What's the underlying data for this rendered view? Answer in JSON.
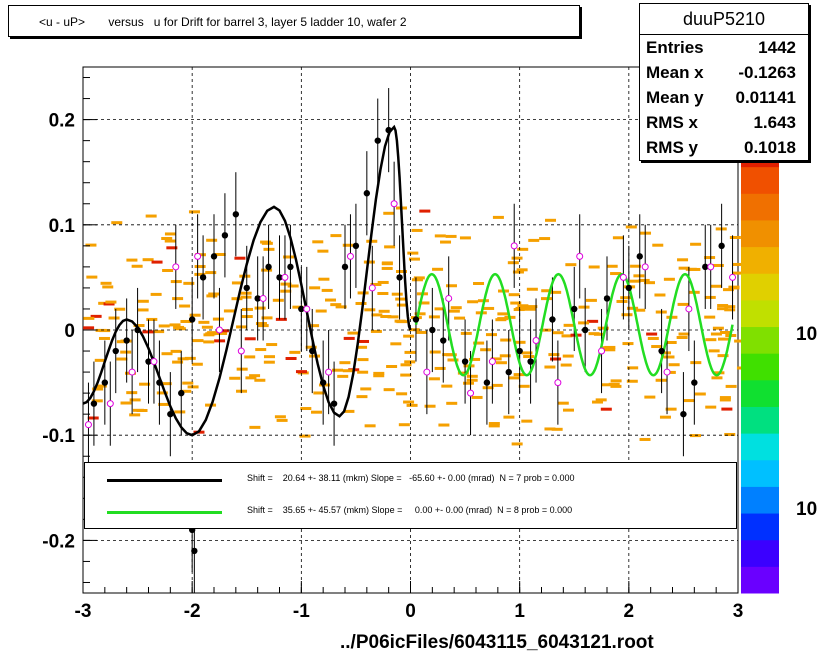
{
  "title": "<u - uP>       versus   u for Drift for barrel 3, layer 5 ladder 10, wafer 2",
  "xlabel": "../P06icFiles/6043115_6043121.root",
  "stats": {
    "name": "duuP5210",
    "rows": [
      {
        "label": "Entries",
        "value": "1442"
      },
      {
        "label": "Mean x",
        "value": "-0.1263"
      },
      {
        "label": "Mean y",
        "value": "0.01141"
      },
      {
        "label": "RMS x",
        "value": "1.643"
      },
      {
        "label": "RMS y",
        "value": "0.1018"
      }
    ]
  },
  "legend": {
    "fit1": "Shift =    20.64 +- 38.11 (mkm) Slope =   -65.60 +- 0.00 (mrad)  N = 7 prob = 0.000",
    "fit2": "Shift =    35.65 +- 45.57 (mkm) Slope =     0.00 +- 0.00 (mrad)  N = 8 prob = 0.000"
  },
  "colorbar_labels": [
    "10",
    "10"
  ],
  "colors": {
    "fit1": "#000000",
    "fit2": "#22dd22",
    "open_marker": "#dd00dd",
    "cells": "#f5a000"
  },
  "chart_data": {
    "type": "scatter",
    "xlim": [
      -3,
      3
    ],
    "ylim": [
      -0.25,
      0.25
    ],
    "x_ticks": [
      -3,
      -2,
      -1,
      0,
      1,
      2,
      3
    ],
    "x_tick_labels": [
      "-3",
      "-2",
      "-1",
      "0",
      "1",
      "2",
      "3"
    ],
    "y_ticks": [
      -0.2,
      -0.1,
      0,
      0.1,
      0.2
    ],
    "y_tick_labels": [
      "-0.2",
      "-0.1",
      "0",
      "0.1",
      "0.2"
    ],
    "grid": true,
    "series": [
      {
        "marker": "filled-circle",
        "x": [
          -2.9,
          -2.8,
          -2.7,
          -2.6,
          -2.5,
          -2.4,
          -2.3,
          -2.2,
          -2.1,
          -2.0,
          -1.9,
          -1.8,
          -1.7,
          -1.6,
          -1.5,
          -1.4,
          -1.3,
          -1.2,
          -1.1,
          -1.0,
          -0.9,
          -0.8,
          -0.7,
          -0.6,
          -0.5,
          -0.4,
          -0.3,
          -0.2,
          -0.1,
          0.05,
          0.2,
          0.3,
          0.5,
          0.7,
          0.9,
          1.0,
          1.1,
          1.3,
          1.5,
          1.6,
          1.8,
          2.0,
          2.1,
          2.3,
          2.5,
          2.6,
          2.7,
          2.85,
          -2.0,
          -1.98
        ],
        "y": [
          -0.07,
          -0.05,
          -0.02,
          -0.01,
          0.0,
          -0.03,
          -0.05,
          -0.08,
          -0.06,
          0.01,
          0.05,
          0.07,
          0.09,
          0.11,
          0.04,
          0.03,
          0.06,
          0.05,
          0.06,
          0.02,
          -0.02,
          -0.05,
          -0.07,
          0.06,
          0.08,
          0.13,
          0.18,
          0.19,
          0.05,
          0.01,
          0.0,
          -0.01,
          -0.03,
          -0.05,
          -0.04,
          -0.02,
          -0.03,
          0.01,
          0.02,
          0.0,
          0.03,
          0.04,
          0.07,
          -0.02,
          -0.08,
          -0.05,
          0.06,
          0.08,
          -0.19,
          -0.21
        ]
      },
      {
        "marker": "open-circle",
        "x": [
          -2.95,
          -2.75,
          -2.55,
          -2.35,
          -2.15,
          -1.95,
          -1.75,
          -1.55,
          -1.35,
          -1.15,
          -0.95,
          -0.75,
          -0.55,
          -0.35,
          -0.15,
          0.15,
          0.35,
          0.55,
          0.75,
          0.95,
          1.15,
          1.35,
          1.55,
          1.75,
          1.95,
          2.15,
          2.35,
          2.55,
          2.75,
          2.95
        ],
        "y": [
          -0.09,
          -0.07,
          -0.04,
          -0.03,
          0.06,
          0.07,
          0.0,
          -0.02,
          0.03,
          0.05,
          0.02,
          -0.04,
          0.07,
          0.04,
          0.12,
          -0.04,
          0.03,
          -0.06,
          -0.03,
          0.08,
          -0.01,
          -0.05,
          0.07,
          -0.02,
          0.05,
          0.06,
          -0.04,
          0.02,
          0.06,
          0.05
        ]
      }
    ],
    "fits": [
      {
        "x_range": [
          -3,
          0
        ],
        "curve": "oscillating",
        "amplitude_points": [
          [
            -2.6,
            0.01
          ],
          [
            -2.0,
            -0.1
          ],
          [
            -1.25,
            0.117
          ],
          [
            -0.65,
            -0.082
          ],
          [
            -0.15,
            0.193
          ]
        ]
      },
      {
        "x_range": [
          0.05,
          2.95
        ],
        "curve": "sine",
        "center": 0.005,
        "amplitude": 0.048,
        "period": 0.58
      }
    ]
  }
}
